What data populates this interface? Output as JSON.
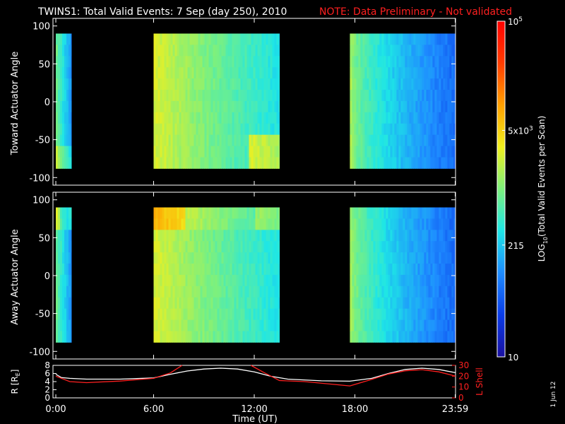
{
  "title": {
    "main": "TWINS1: Total Valid Events:  7 Sep (day 250), 2010",
    "note": "NOTE: Data Preliminary - Not validated",
    "note_color": "#ff2020"
  },
  "colorbar": {
    "label": "LOG10(Total Valid Events per Scan)",
    "label_base": "LOG",
    "label_sub": "10",
    "label_rest": "(Total Valid Events per Scan)",
    "scale": "log",
    "range": [
      10,
      100000
    ],
    "ticks": [
      {
        "value": 100000,
        "label_base": "10",
        "label_exp": "5"
      },
      {
        "value": 5000,
        "label_base": "5x10",
        "label_exp": "3"
      },
      {
        "value": 215,
        "label_base": "215",
        "label_exp": ""
      },
      {
        "value": 10,
        "label_base": "10",
        "label_exp": ""
      }
    ],
    "colors": [
      "#1a10a0",
      "#0a3ce8",
      "#1e8cff",
      "#1ee6e6",
      "#7df07d",
      "#f0f01e",
      "#ffa000",
      "#ff3c00",
      "#ff0000"
    ]
  },
  "x_axis": {
    "label": "Time (UT)",
    "range_hours": [
      0,
      24
    ],
    "ticks": [
      {
        "hours": 0.17,
        "label": "0:00"
      },
      {
        "hours": 6,
        "label": "6:00"
      },
      {
        "hours": 12,
        "label": "12:00"
      },
      {
        "hours": 18,
        "label": "18:00"
      },
      {
        "hours": 23.98,
        "label": "23:59"
      }
    ]
  },
  "date_stamp": "1 Jun 12",
  "chart_data": [
    {
      "type": "heatmap",
      "name": "toward",
      "ylabel": "Toward Actuator Angle",
      "ylim": [
        -110,
        110
      ],
      "yticks": [
        100,
        50,
        0,
        -50,
        -100
      ],
      "y_extent": [
        -88,
        90
      ],
      "segments": [
        {
          "start": 0.17,
          "end": 1.1,
          "base": 800,
          "feature": "bottom-boost"
        },
        {
          "start": 6.0,
          "end": 13.5,
          "base": 2500,
          "feature": "bottom-boost-late"
        },
        {
          "start": 17.7,
          "end": 24.0,
          "base": 1500,
          "feature": "none"
        }
      ]
    },
    {
      "type": "heatmap",
      "name": "away",
      "ylabel": "Away Actuator Angle",
      "ylim": [
        -110,
        110
      ],
      "yticks": [
        100,
        50,
        0,
        -50,
        -100
      ],
      "y_extent": [
        -88,
        90
      ],
      "segments": [
        {
          "start": 0.17,
          "end": 1.1,
          "base": 800,
          "feature": "top-boost"
        },
        {
          "start": 6.0,
          "end": 13.5,
          "base": 2500,
          "feature": "top-boost"
        },
        {
          "start": 17.7,
          "end": 24.0,
          "base": 1500,
          "feature": "none"
        }
      ]
    },
    {
      "type": "line",
      "name": "orbit",
      "ylabel_left": "R [RE]",
      "ylabel_left_base": "R [R",
      "ylabel_left_sub": "E",
      "ylabel_left_end": "]",
      "ylabel_right": "L Shell",
      "ylim_left": [
        0,
        8
      ],
      "yticks_left": [
        0,
        2,
        4,
        6,
        8
      ],
      "ylim_right": [
        0,
        30
      ],
      "yticks_right": [
        0,
        10,
        20,
        30
      ],
      "series": [
        {
          "axis": "left",
          "color": "#ffffff",
          "x": [
            0.17,
            0.5,
            1.0,
            2.0,
            4.0,
            6.0,
            7.0,
            8.0,
            9.0,
            10.0,
            11.0,
            12.0,
            13.0,
            14.0,
            16.0,
            17.7,
            19.0,
            20.0,
            21.0,
            22.0,
            23.0,
            24.0
          ],
          "y": [
            5.8,
            5.0,
            4.8,
            4.6,
            4.6,
            4.9,
            5.8,
            6.6,
            7.1,
            7.3,
            7.1,
            6.4,
            5.3,
            4.6,
            4.2,
            4.1,
            4.8,
            6.0,
            7.0,
            7.3,
            7.0,
            6.2
          ]
        },
        {
          "axis": "right",
          "color": "#ff2020",
          "x": [
            0.17,
            1.0,
            2.0,
            4.0,
            6.0,
            7.0,
            7.7,
            7.9,
            11.6,
            11.8,
            12.5,
            13.5,
            15.0,
            17.7,
            19.0,
            20.0,
            21.0,
            22.0,
            23.0,
            24.0
          ],
          "y": [
            20.0,
            15.0,
            14.0,
            15.5,
            18.0,
            23.0,
            30.0,
            null,
            null,
            30.0,
            24.0,
            16.0,
            15.0,
            11.0,
            17.0,
            22.0,
            25.0,
            26.0,
            24.0,
            20.0
          ]
        }
      ]
    }
  ]
}
